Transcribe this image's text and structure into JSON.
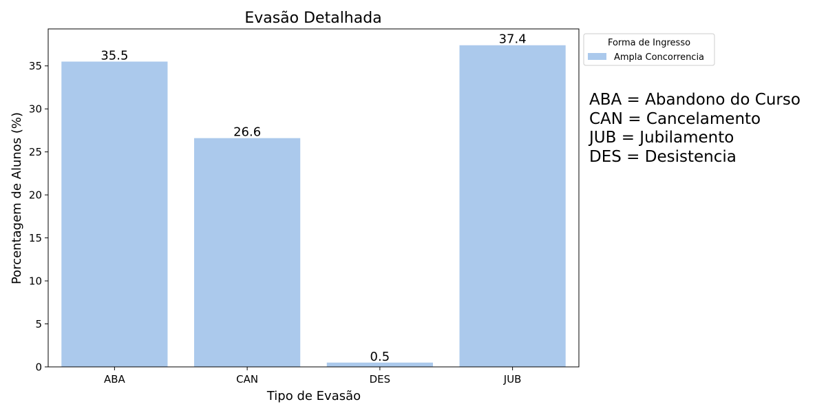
{
  "chart_data": {
    "type": "bar",
    "title": "Evasão Detalhada",
    "xlabel": "Tipo de Evasão",
    "ylabel": "Porcentagem de Alunos (%)",
    "categories": [
      "ABA",
      "CAN",
      "DES",
      "JUB"
    ],
    "series": [
      {
        "name": "Ampla Concorrencia",
        "values": [
          35.5,
          26.6,
          0.5,
          37.4
        ],
        "color": "#abc9ec"
      }
    ],
    "data_labels": [
      "35.5",
      "26.6",
      "0.5",
      "37.4"
    ],
    "ylim": [
      0,
      39.3
    ],
    "yticks": [
      0,
      5,
      10,
      15,
      20,
      25,
      30,
      35
    ],
    "grid": false,
    "legend": {
      "title": "Forma de Ingresso",
      "placement": "upper-left outside right of plot"
    }
  },
  "annotation": {
    "lines": [
      "ABA = Abandono do Curso",
      "CAN = Cancelamento",
      "JUB = Jubilamento",
      "DES = Desistencia"
    ]
  }
}
